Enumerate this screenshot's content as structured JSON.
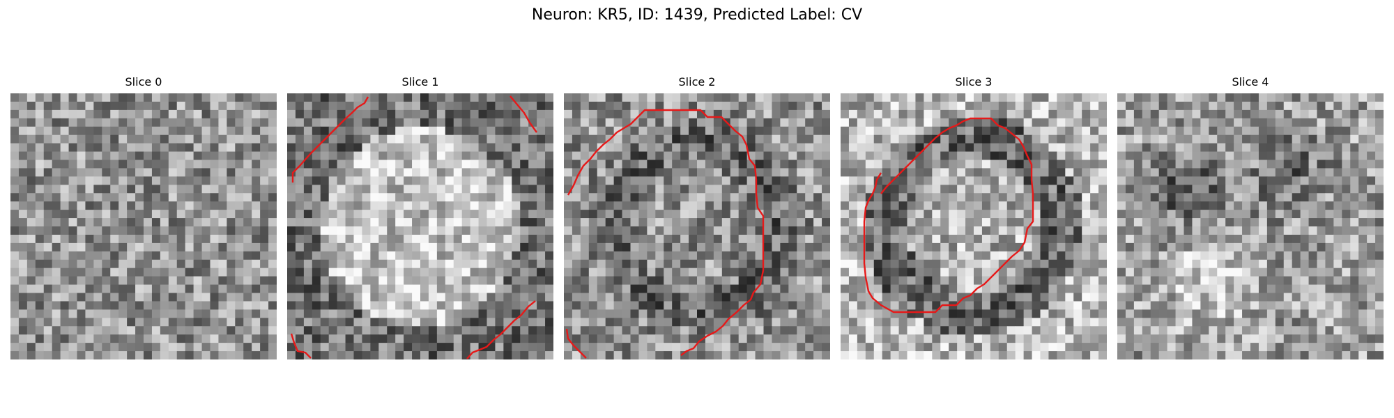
{
  "figure": {
    "title": "Neuron: KR5, ID: 1439, Predicted Label: CV"
  },
  "panels": [
    {
      "title": "Slice 0",
      "has_contour": false,
      "seed": 101,
      "pattern": "noise",
      "contour_color": "#e61919"
    },
    {
      "title": "Slice 1",
      "has_contour": true,
      "seed": 211,
      "pattern": "bright-disc",
      "contour_color": "#e61919"
    },
    {
      "title": "Slice 2",
      "has_contour": true,
      "seed": 331,
      "pattern": "ring",
      "contour_color": "#e61919"
    },
    {
      "title": "Slice 3",
      "has_contour": true,
      "seed": 443,
      "pattern": "dark-ring",
      "contour_color": "#e61919"
    },
    {
      "title": "Slice 4",
      "has_contour": false,
      "seed": 557,
      "pattern": "blobs",
      "contour_color": "#e61919"
    }
  ]
}
